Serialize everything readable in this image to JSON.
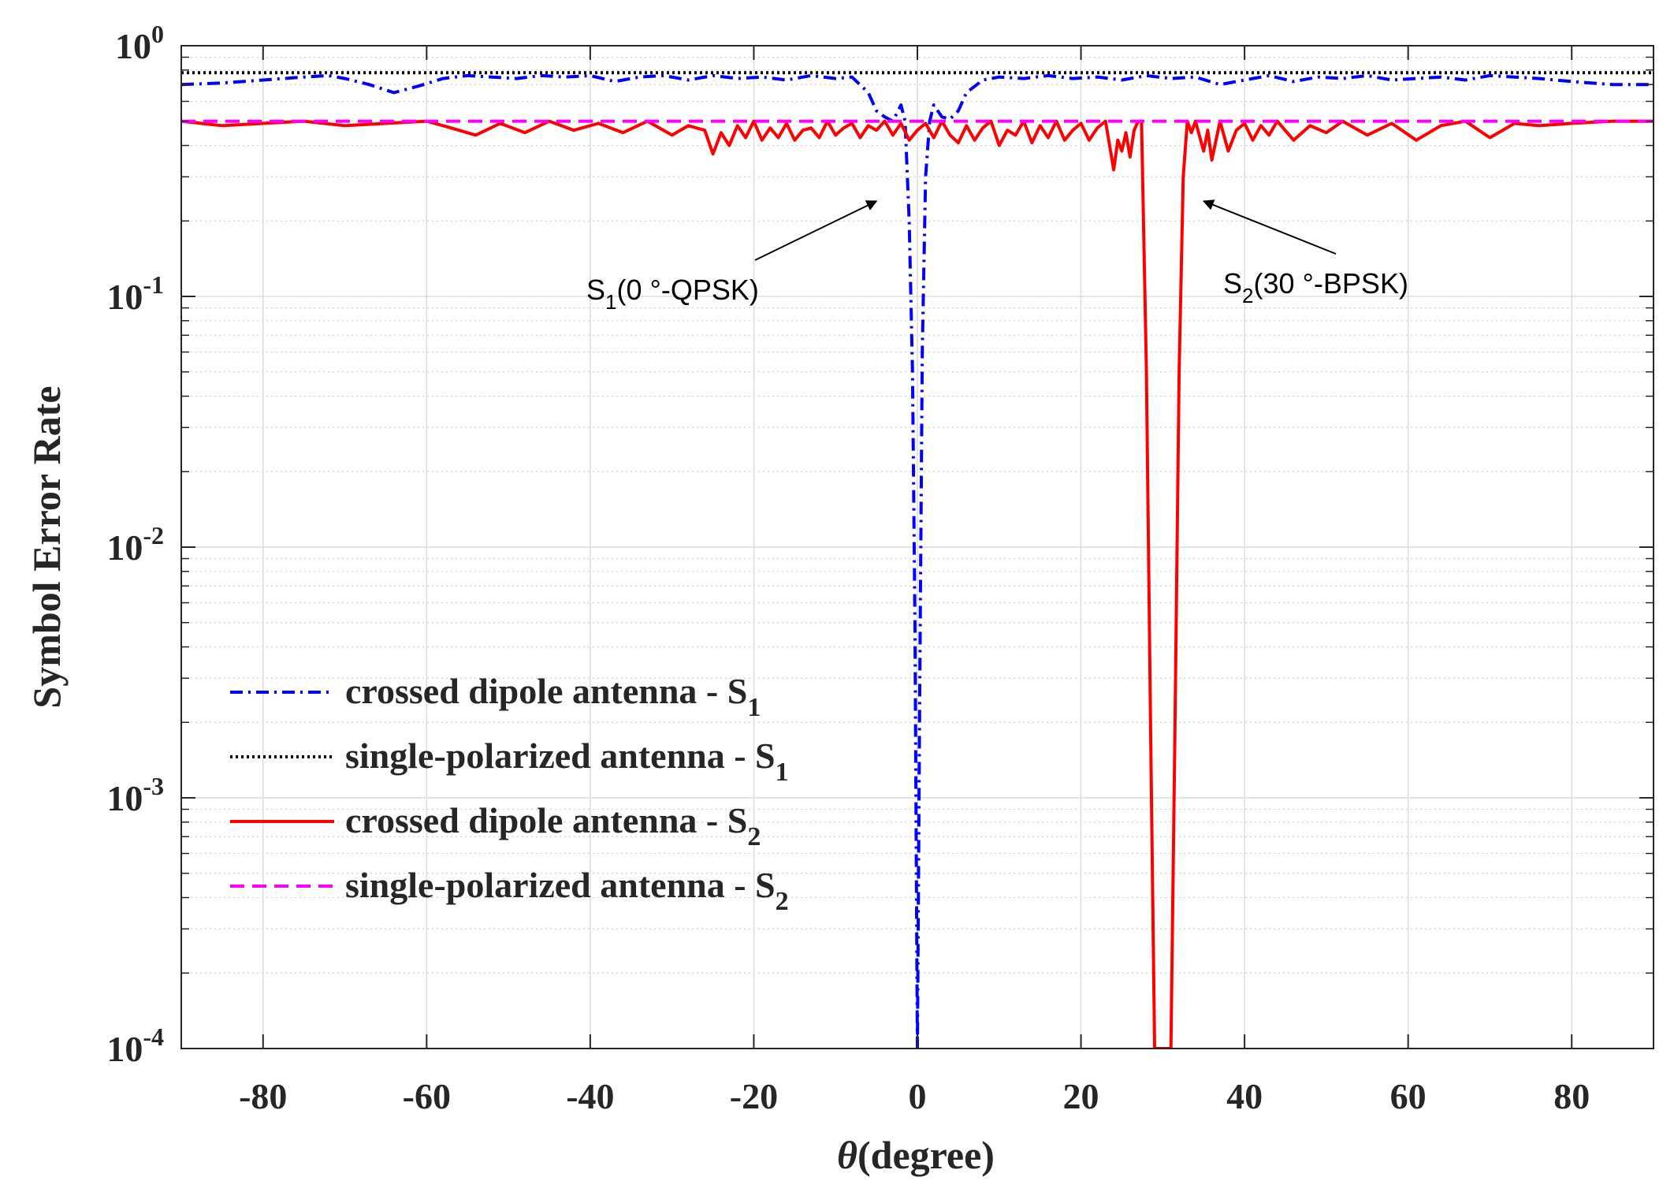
{
  "chart_data": {
    "type": "line",
    "ylabel": "Symbol Error Rate",
    "xlabel": {
      "symbol": "θ",
      "text": "(degree)"
    },
    "xlim": [
      -90,
      90
    ],
    "ylim": [
      0.0001,
      1
    ],
    "yscale": "log",
    "grid": true,
    "x_ticks": [
      -80,
      -60,
      -40,
      -20,
      0,
      20,
      40,
      60,
      80
    ],
    "x_tick_labels": [
      "-80",
      "-60",
      "-40",
      "-20",
      "0",
      "20",
      "40",
      "60",
      "80"
    ],
    "y_ticks": [
      {
        "value": 1,
        "base": "10",
        "exp": "0"
      },
      {
        "value": 0.1,
        "base": "10",
        "exp": "-1"
      },
      {
        "value": 0.01,
        "base": "10",
        "exp": "-2"
      },
      {
        "value": 0.001,
        "base": "10",
        "exp": "-3"
      },
      {
        "value": 0.0001,
        "base": "10",
        "exp": "-4"
      }
    ],
    "legend_position": "lower-left",
    "series": [
      {
        "name": "crossed dipole antenna - S1",
        "label": "crossed dipole antenna - S",
        "sub": "1",
        "color": "#0000ff",
        "dash": "dashdot",
        "x": [
          -90,
          -85,
          -80,
          -75,
          -72,
          -70,
          -67,
          -64,
          -61,
          -58,
          -55,
          -52,
          -49,
          -46,
          -43,
          -40,
          -37,
          -34,
          -31,
          -28,
          -25,
          -22,
          -19,
          -16,
          -13,
          -10,
          -8,
          -6,
          -5,
          -4,
          -3,
          -2,
          -1.5,
          -1,
          -0.6,
          -0.3,
          0,
          0.3,
          0.6,
          1,
          1.5,
          2,
          3,
          4,
          5,
          6,
          8,
          10,
          13,
          16,
          19,
          22,
          25,
          28,
          31,
          34,
          37,
          40,
          43,
          46,
          49,
          52,
          55,
          58,
          61,
          64,
          67,
          70,
          73,
          76,
          80,
          85,
          90
        ],
        "y": [
          0.7,
          0.71,
          0.73,
          0.75,
          0.76,
          0.74,
          0.7,
          0.65,
          0.69,
          0.74,
          0.76,
          0.75,
          0.74,
          0.76,
          0.75,
          0.76,
          0.72,
          0.75,
          0.76,
          0.73,
          0.76,
          0.74,
          0.75,
          0.73,
          0.76,
          0.74,
          0.75,
          0.65,
          0.55,
          0.52,
          0.5,
          0.58,
          0.5,
          0.2,
          0.05,
          0.005,
          0.0001,
          0.003,
          0.06,
          0.3,
          0.5,
          0.58,
          0.52,
          0.51,
          0.55,
          0.65,
          0.73,
          0.75,
          0.74,
          0.76,
          0.74,
          0.75,
          0.73,
          0.76,
          0.74,
          0.75,
          0.7,
          0.73,
          0.76,
          0.72,
          0.75,
          0.74,
          0.76,
          0.73,
          0.74,
          0.75,
          0.73,
          0.76,
          0.75,
          0.74,
          0.72,
          0.7,
          0.7
        ]
      },
      {
        "name": "single-polarized antenna - S1",
        "label": "single-polarized antenna  - S",
        "sub": "1",
        "color": "#000000",
        "dash": "dotted",
        "x": [
          -90,
          90
        ],
        "y": [
          0.78,
          0.78
        ]
      },
      {
        "name": "crossed dipole antenna - S2",
        "label": "crossed dipole antenna - S",
        "sub": "2",
        "color": "#ff0000",
        "dash": "solid",
        "x": [
          -90,
          -85,
          -80,
          -75,
          -70,
          -65,
          -60,
          -57,
          -54,
          -51,
          -48,
          -45,
          -42,
          -39,
          -36,
          -33,
          -30,
          -28,
          -26,
          -25,
          -24,
          -23,
          -22,
          -21,
          -20,
          -19,
          -18,
          -17,
          -16,
          -15,
          -14,
          -13,
          -12,
          -11,
          -10,
          -9,
          -8,
          -7,
          -6,
          -5,
          -4,
          -3,
          -2,
          -1,
          0,
          1,
          2,
          3,
          4,
          5,
          6,
          7,
          8,
          9,
          10,
          11,
          12,
          13,
          14,
          15,
          16,
          17,
          18,
          19,
          20,
          21,
          22,
          23,
          24,
          24.5,
          25,
          25.5,
          26,
          26.5,
          27,
          27.4,
          28,
          28.5,
          29,
          30,
          31,
          31.5,
          32,
          32.5,
          33,
          33.5,
          34,
          35,
          35.5,
          36,
          37,
          38,
          39,
          40,
          41,
          42,
          43,
          44,
          46,
          48,
          50,
          52,
          55,
          58,
          61,
          64,
          67,
          70,
          73,
          76,
          80,
          85,
          90
        ],
        "y": [
          0.5,
          0.48,
          0.49,
          0.5,
          0.48,
          0.49,
          0.5,
          0.47,
          0.44,
          0.49,
          0.45,
          0.5,
          0.46,
          0.49,
          0.45,
          0.5,
          0.44,
          0.48,
          0.46,
          0.37,
          0.45,
          0.4,
          0.48,
          0.43,
          0.5,
          0.42,
          0.47,
          0.43,
          0.49,
          0.42,
          0.46,
          0.47,
          0.43,
          0.5,
          0.44,
          0.47,
          0.49,
          0.43,
          0.48,
          0.46,
          0.5,
          0.44,
          0.49,
          0.42,
          0.46,
          0.49,
          0.43,
          0.5,
          0.44,
          0.41,
          0.48,
          0.42,
          0.47,
          0.5,
          0.4,
          0.46,
          0.44,
          0.5,
          0.41,
          0.48,
          0.43,
          0.5,
          0.42,
          0.46,
          0.49,
          0.42,
          0.47,
          0.5,
          0.32,
          0.42,
          0.38,
          0.45,
          0.36,
          0.46,
          0.5,
          0.5,
          0.05,
          0.002,
          0.0001,
          0.0001,
          0.0001,
          0.002,
          0.05,
          0.3,
          0.5,
          0.45,
          0.5,
          0.38,
          0.46,
          0.35,
          0.5,
          0.38,
          0.46,
          0.49,
          0.42,
          0.48,
          0.44,
          0.5,
          0.42,
          0.48,
          0.45,
          0.5,
          0.44,
          0.49,
          0.42,
          0.48,
          0.5,
          0.43,
          0.49,
          0.48,
          0.49,
          0.5,
          0.5
        ]
      },
      {
        "name": "single-polarized antenna - S2",
        "label": "single-polarized antenna  - S",
        "sub": "2",
        "color": "#ff00ff",
        "dash": "dashed",
        "x": [
          -90,
          90
        ],
        "y": [
          0.5,
          0.5
        ]
      }
    ],
    "annotations": [
      {
        "id": "s1",
        "text": "S",
        "sub": "1",
        "suffix": "(0 °-QPSK)",
        "target_x": -5,
        "target_y": 0.24
      },
      {
        "id": "s2",
        "text": "S",
        "sub": "2",
        "suffix": "(30 °-BPSK)",
        "target_x": 35,
        "target_y": 0.24
      }
    ]
  }
}
